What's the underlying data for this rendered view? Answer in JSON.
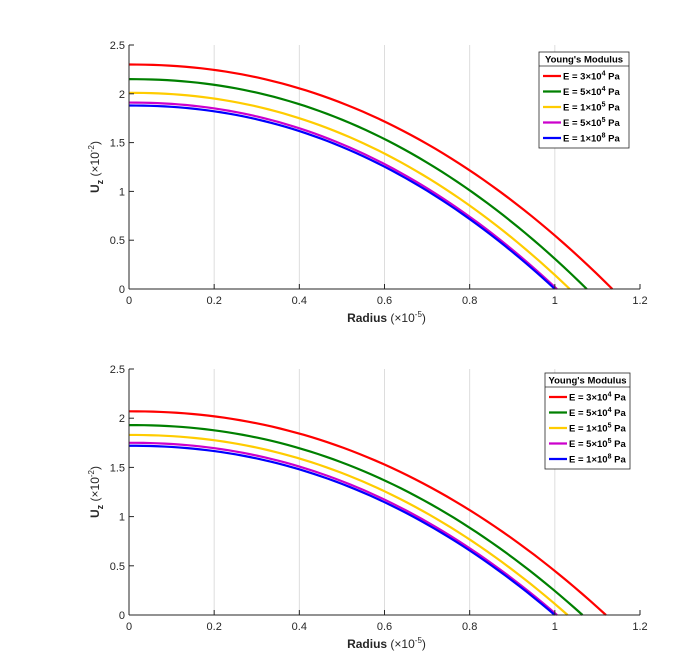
{
  "chart_data": [
    {
      "type": "line",
      "title": "",
      "xlabel_main": "Radius",
      "xlabel_factor": "(×10",
      "xlabel_exp": "-5",
      "xlabel_close": ")",
      "ylabel_main": "U",
      "ylabel_sub": "z",
      "ylabel_factor": "(×10",
      "ylabel_exp": "-2",
      "ylabel_close": ")",
      "xlim": [
        0,
        1.2
      ],
      "ylim": [
        0,
        2.5
      ],
      "xticks": [
        0,
        0.2,
        0.4,
        0.6,
        0.8,
        1,
        1.2
      ],
      "xtick_labels": [
        "0",
        "0.2",
        "0.4",
        "0.6",
        "0.8",
        "1",
        "1.2"
      ],
      "yticks": [
        0,
        0.5,
        1,
        1.5,
        2,
        2.5
      ],
      "ytick_labels": [
        "0",
        "0.5",
        "1",
        "1.5",
        "2",
        "2.5"
      ],
      "grid": "x",
      "legend": {
        "title": "Young's Modulus",
        "placement": "top-right",
        "entries": [
          {
            "pre": "E = 3×10",
            "exp": "4",
            "post": " Pa"
          },
          {
            "pre": "E = 5×10",
            "exp": "4",
            "post": " Pa"
          },
          {
            "pre": "E = 1×10",
            "exp": "5",
            "post": " Pa"
          },
          {
            "pre": "E = 5×10",
            "exp": "5",
            "post": " Pa"
          },
          {
            "pre": "E = 1×10",
            "exp": "8",
            "post": " Pa"
          }
        ]
      },
      "series": [
        {
          "name": "E = 3x10^4 Pa",
          "color": "#ff0000",
          "y0": 2.3,
          "xmax": 1.135
        },
        {
          "name": "E = 5x10^4 Pa",
          "color": "#008000",
          "y0": 2.15,
          "xmax": 1.075
        },
        {
          "name": "E = 1x10^5 Pa",
          "color": "#ffcc00",
          "y0": 2.01,
          "xmax": 1.035
        },
        {
          "name": "E = 5x10^5 Pa",
          "color": "#cc00cc",
          "y0": 1.91,
          "xmax": 1.005
        },
        {
          "name": "E = 1x10^8 Pa",
          "color": "#0000ff",
          "y0": 1.88,
          "xmax": 1.0
        }
      ]
    },
    {
      "type": "line",
      "title": "",
      "xlabel_main": "Radius",
      "xlabel_factor": "(×10",
      "xlabel_exp": "-5",
      "xlabel_close": ")",
      "ylabel_main": "U",
      "ylabel_sub": "z",
      "ylabel_factor": "(×10",
      "ylabel_exp": "-2",
      "ylabel_close": ")",
      "xlim": [
        0,
        1.2
      ],
      "ylim": [
        0,
        2.5
      ],
      "xticks": [
        0,
        0.2,
        0.4,
        0.6,
        0.8,
        1,
        1.2
      ],
      "xtick_labels": [
        "0",
        "0.2",
        "0.4",
        "0.6",
        "0.8",
        "1",
        "1.2"
      ],
      "yticks": [
        0,
        0.5,
        1,
        1.5,
        2,
        2.5
      ],
      "ytick_labels": [
        "0",
        "0.5",
        "1",
        "1.5",
        "2",
        "2.5"
      ],
      "grid": "x",
      "legend": {
        "title": "Young's Modulus",
        "placement": "top-right",
        "entries": [
          {
            "pre": "E = 3×10",
            "exp": "4",
            "post": " Pa"
          },
          {
            "pre": "E = 5×10",
            "exp": "4",
            "post": " Pa"
          },
          {
            "pre": "E = 1×10",
            "exp": "5",
            "post": " Pa"
          },
          {
            "pre": "E = 5×10",
            "exp": "5",
            "post": " Pa"
          },
          {
            "pre": "E = 1×10",
            "exp": "8",
            "post": " Pa"
          }
        ]
      },
      "series": [
        {
          "name": "E = 3x10^4 Pa",
          "color": "#ff0000",
          "y0": 2.07,
          "xmax": 1.12
        },
        {
          "name": "E = 5x10^4 Pa",
          "color": "#008000",
          "y0": 1.93,
          "xmax": 1.065
        },
        {
          "name": "E = 1x10^5 Pa",
          "color": "#ffcc00",
          "y0": 1.83,
          "xmax": 1.03
        },
        {
          "name": "E = 5x10^5 Pa",
          "color": "#cc00cc",
          "y0": 1.75,
          "xmax": 1.005
        },
        {
          "name": "E = 1x10^8 Pa",
          "color": "#0000ff",
          "y0": 1.72,
          "xmax": 1.0
        }
      ]
    }
  ]
}
